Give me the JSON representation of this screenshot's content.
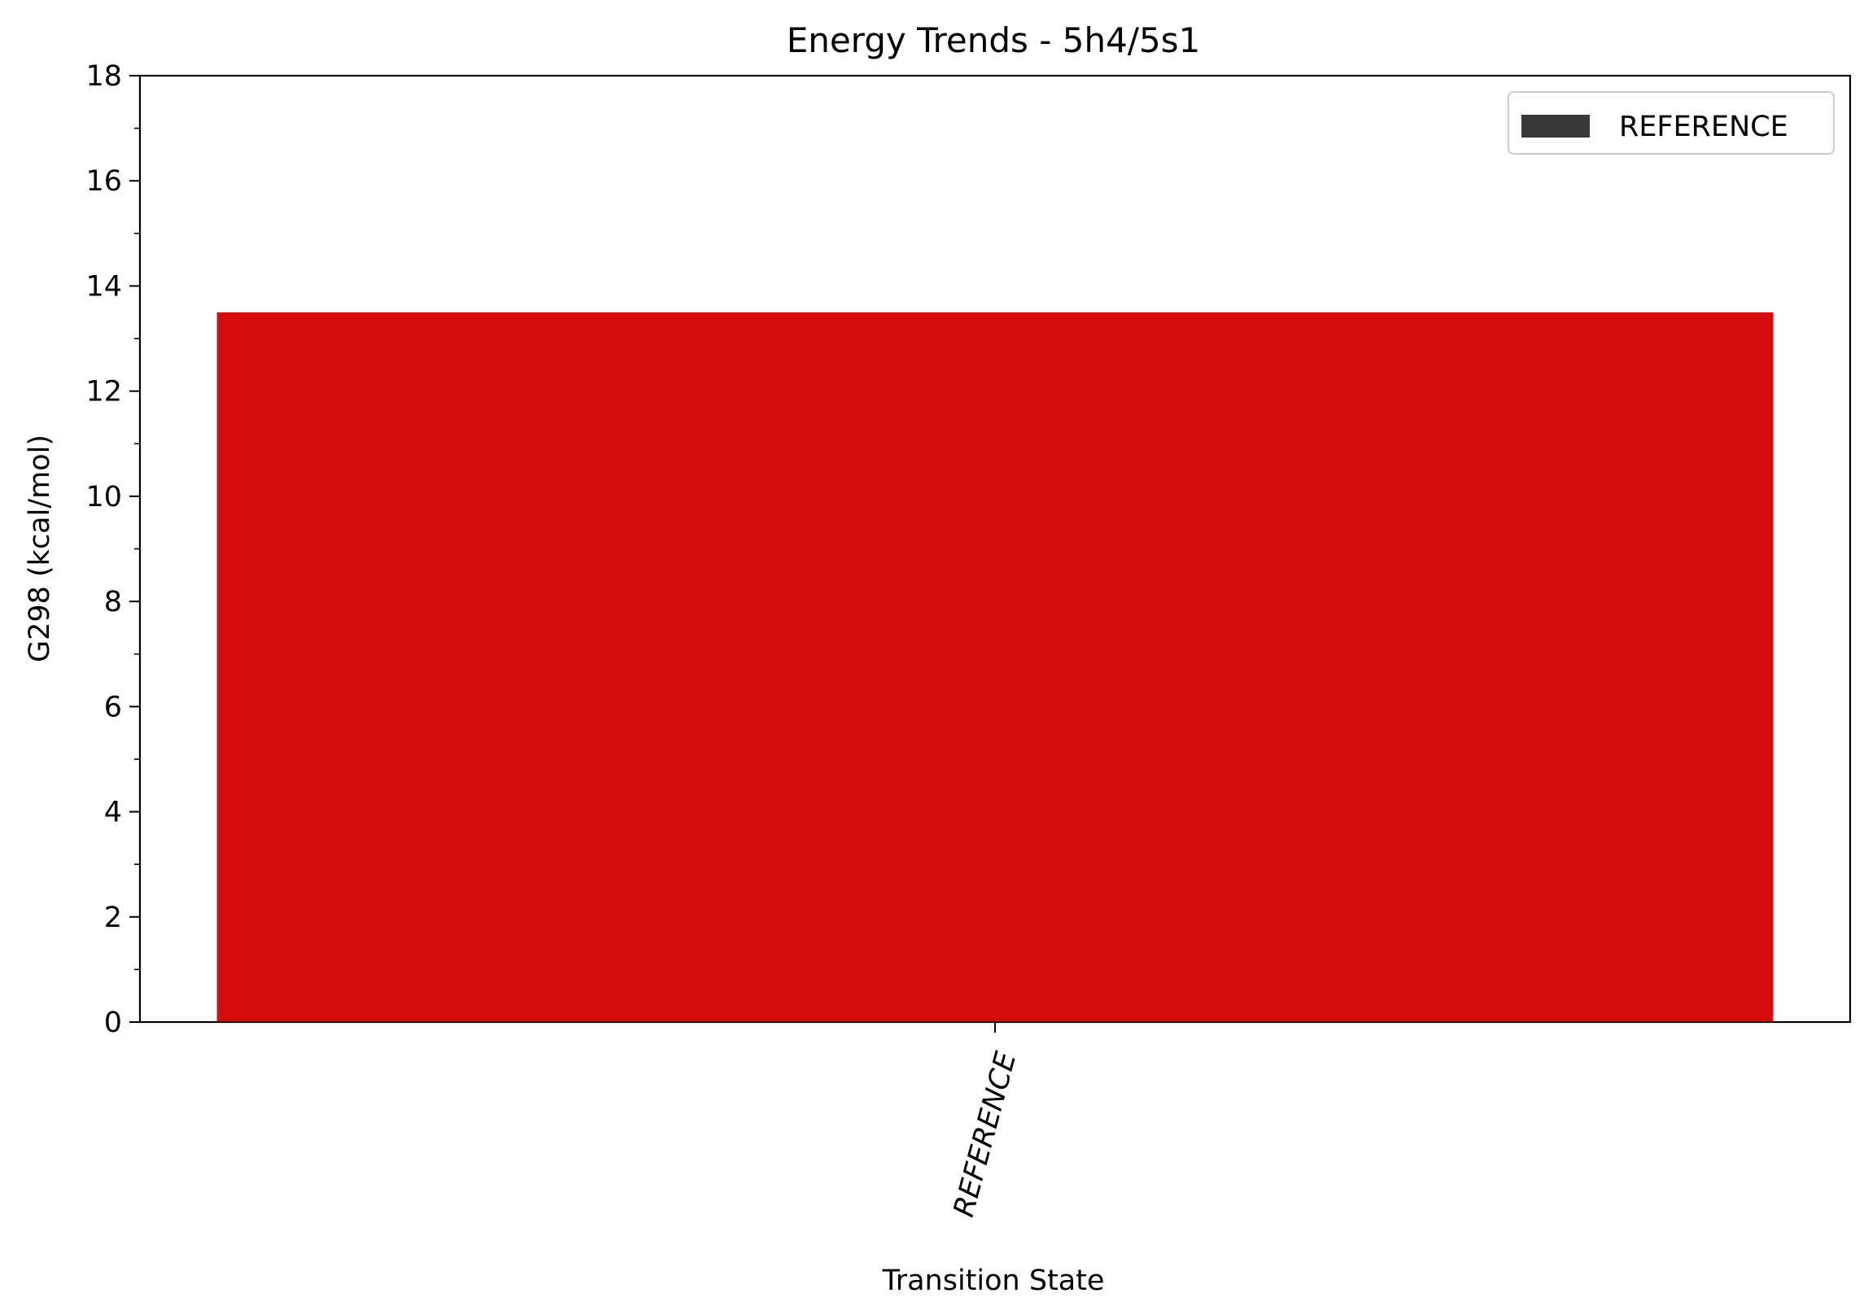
{
  "chart_data": {
    "type": "bar",
    "title": "Energy Trends - 5h4/5s1",
    "xlabel": "Transition State",
    "ylabel": "G298 (kcal/mol)",
    "categories": [
      "REFERENCE"
    ],
    "values": [
      13.5
    ],
    "bar_colors": [
      "#d40c0c"
    ],
    "ylim": [
      0,
      18
    ],
    "yticks": [
      "0",
      "2",
      "4",
      "6",
      "8",
      "10",
      "12",
      "14",
      "16",
      "18"
    ],
    "y_minor_step": 1,
    "xtick_rotation_deg": 75,
    "grid": false,
    "legend": {
      "placement": "top-right",
      "entries": [
        {
          "label": "REFERENCE",
          "color": "#383838"
        }
      ]
    }
  }
}
